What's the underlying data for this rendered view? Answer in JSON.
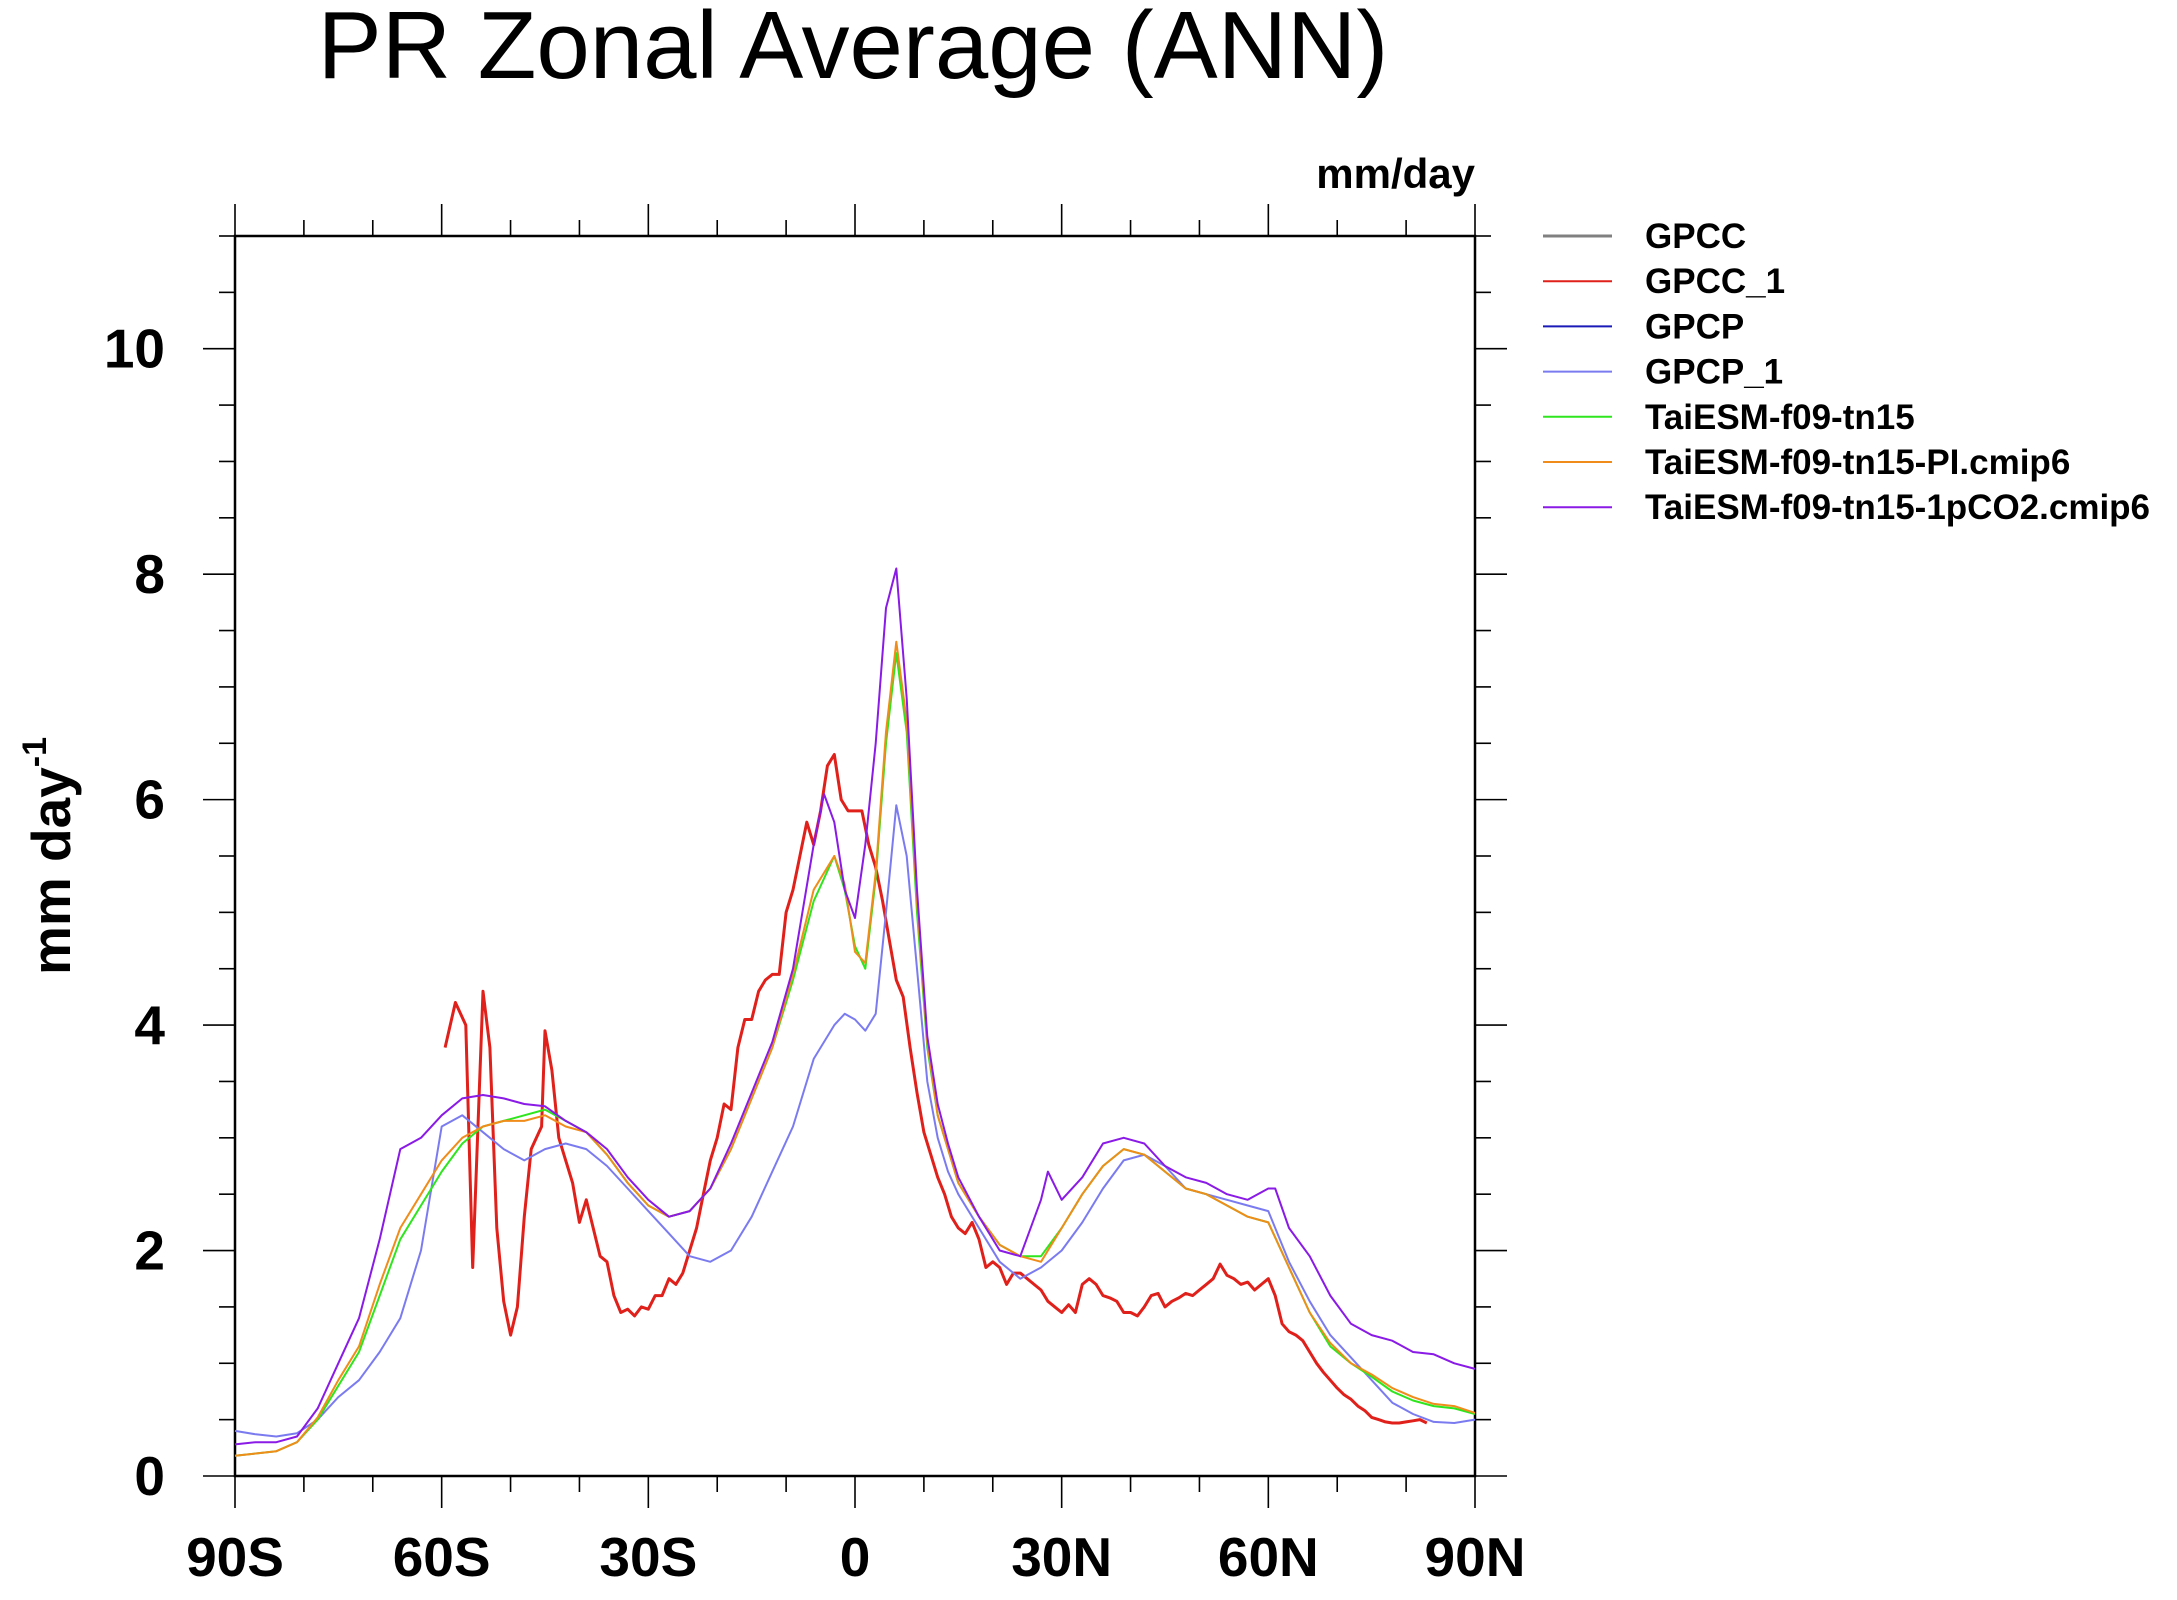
{
  "chart_data": {
    "type": "line",
    "title": "PR Zonal Average (ANN)",
    "units": "mm/day",
    "xlabel": "",
    "ylabel": "mm day",
    "ylabel_sup": "-1",
    "xlim": [
      -90,
      90
    ],
    "ylim": [
      0,
      11
    ],
    "x_ticks": [
      {
        "value": -90,
        "label": "90S"
      },
      {
        "value": -60,
        "label": "60S"
      },
      {
        "value": -30,
        "label": "30S"
      },
      {
        "value": 0,
        "label": "0"
      },
      {
        "value": 30,
        "label": "30N"
      },
      {
        "value": 60,
        "label": "60N"
      },
      {
        "value": 90,
        "label": "90N"
      }
    ],
    "y_ticks": [
      {
        "value": 0,
        "label": "0"
      },
      {
        "value": 2,
        "label": "2"
      },
      {
        "value": 4,
        "label": "4"
      },
      {
        "value": 6,
        "label": "6"
      },
      {
        "value": 8,
        "label": "8"
      },
      {
        "value": 10,
        "label": "10"
      }
    ],
    "legend_position": "right",
    "series": [
      {
        "name": "GPCC",
        "color": "#808080",
        "x": [],
        "y": []
      },
      {
        "name": "GPCC_1",
        "color": "#e0201a",
        "x": [
          -59.5,
          -58,
          -56.5,
          -55.5,
          -54,
          -53,
          -52,
          -51,
          -50,
          -49,
          -48,
          -47,
          -45.5,
          -45,
          -44,
          -43,
          -42,
          -41,
          -40,
          -39,
          -38,
          -37,
          -36,
          -35,
          -34,
          -33,
          -32,
          -31,
          -30,
          -29,
          -28,
          -27,
          -26,
          -25,
          -24,
          -23,
          -22,
          -21,
          -20,
          -19,
          -18,
          -17,
          -16,
          -15,
          -14,
          -13,
          -12,
          -11,
          -10,
          -9,
          -8,
          -7,
          -6,
          -5,
          -4,
          -3,
          -2,
          -1,
          0,
          1,
          2,
          3,
          4,
          5,
          6,
          7,
          8,
          9,
          10,
          11,
          12,
          13,
          14,
          15,
          16,
          17,
          18,
          19,
          20,
          21,
          22,
          23,
          24,
          25,
          26,
          27,
          28,
          29,
          30,
          31,
          32,
          33,
          34,
          35,
          36,
          37,
          38,
          39,
          40,
          41,
          42,
          43,
          44,
          45,
          46,
          47,
          48,
          49,
          50,
          51,
          52,
          53,
          54,
          55,
          56,
          57,
          58,
          59,
          60,
          61,
          62,
          63,
          64,
          65,
          66,
          67,
          68,
          69,
          70,
          71,
          72,
          73,
          74,
          75,
          76,
          77,
          78,
          79,
          80,
          81,
          82,
          83
        ],
        "y": [
          3.8,
          4.2,
          4.0,
          1.85,
          4.3,
          3.8,
          2.2,
          1.55,
          1.25,
          1.5,
          2.3,
          2.9,
          3.1,
          3.95,
          3.6,
          3.0,
          2.8,
          2.6,
          2.25,
          2.45,
          2.2,
          1.95,
          1.9,
          1.6,
          1.45,
          1.48,
          1.42,
          1.5,
          1.48,
          1.6,
          1.6,
          1.75,
          1.7,
          1.8,
          2.0,
          2.2,
          2.5,
          2.8,
          3.0,
          3.3,
          3.25,
          3.8,
          4.05,
          4.05,
          4.3,
          4.4,
          4.45,
          4.45,
          5.0,
          5.2,
          5.5,
          5.8,
          5.6,
          5.9,
          6.3,
          6.4,
          6.0,
          5.9,
          5.9,
          5.9,
          5.6,
          5.4,
          5.1,
          4.75,
          4.4,
          4.25,
          3.8,
          3.4,
          3.05,
          2.85,
          2.65,
          2.5,
          2.3,
          2.2,
          2.15,
          2.25,
          2.1,
          1.85,
          1.9,
          1.85,
          1.7,
          1.8,
          1.8,
          1.75,
          1.7,
          1.65,
          1.55,
          1.5,
          1.45,
          1.52,
          1.45,
          1.7,
          1.75,
          1.7,
          1.6,
          1.58,
          1.55,
          1.45,
          1.45,
          1.42,
          1.5,
          1.6,
          1.62,
          1.5,
          1.55,
          1.58,
          1.62,
          1.6,
          1.65,
          1.7,
          1.75,
          1.88,
          1.78,
          1.75,
          1.7,
          1.72,
          1.65,
          1.7,
          1.75,
          1.6,
          1.35,
          1.28,
          1.25,
          1.2,
          1.1,
          1.0,
          0.92,
          0.85,
          0.78,
          0.72,
          0.68,
          0.62,
          0.58,
          0.52,
          0.5,
          0.48,
          0.47,
          0.47,
          0.48,
          0.49,
          0.5,
          0.47
        ]
      },
      {
        "name": "GPCP",
        "color": "#1a1ab8",
        "x": [],
        "y": []
      },
      {
        "name": "GPCP_1",
        "color": "#7b7bf0",
        "x": [
          -90,
          -87,
          -84,
          -81,
          -78,
          -75,
          -72,
          -69,
          -66,
          -63,
          -60,
          -57,
          -54,
          -51,
          -48,
          -45,
          -42,
          -39,
          -36,
          -33,
          -30,
          -27,
          -24,
          -21,
          -18,
          -15,
          -12,
          -9,
          -6,
          -3,
          -1.5,
          0,
          1.5,
          3,
          4.5,
          6,
          7.5,
          9,
          10.5,
          12,
          13.5,
          15,
          18,
          21,
          24,
          27,
          30,
          33,
          36,
          39,
          42,
          45,
          48,
          51,
          54,
          57,
          60,
          63,
          66,
          69,
          72,
          75,
          78,
          81,
          84,
          87,
          90
        ],
        "y": [
          0.4,
          0.37,
          0.35,
          0.38,
          0.5,
          0.7,
          0.85,
          1.1,
          1.4,
          2.0,
          3.1,
          3.2,
          3.05,
          2.9,
          2.8,
          2.9,
          2.95,
          2.9,
          2.75,
          2.55,
          2.35,
          2.15,
          1.95,
          1.9,
          2.0,
          2.3,
          2.7,
          3.1,
          3.7,
          4.0,
          4.1,
          4.05,
          3.95,
          4.1,
          5.0,
          5.95,
          5.5,
          4.5,
          3.5,
          3.0,
          2.7,
          2.5,
          2.2,
          1.9,
          1.75,
          1.85,
          2.0,
          2.25,
          2.55,
          2.8,
          2.85,
          2.75,
          2.55,
          2.5,
          2.45,
          2.4,
          2.35,
          1.9,
          1.55,
          1.25,
          1.05,
          0.85,
          0.65,
          0.55,
          0.48,
          0.47,
          0.5
        ]
      },
      {
        "name": "TaiESM-f09-tn15",
        "color": "#2ee51e",
        "x": [
          -90,
          -87,
          -84,
          -81,
          -78,
          -75,
          -72,
          -69,
          -66,
          -63,
          -60,
          -57,
          -54,
          -51,
          -48,
          -45,
          -42,
          -39,
          -36,
          -33,
          -30,
          -27,
          -24,
          -21,
          -18,
          -15,
          -12,
          -9,
          -6,
          -3,
          -1.5,
          0,
          1.5,
          3,
          4.5,
          6,
          7.5,
          9,
          10.5,
          12,
          13.5,
          15,
          18,
          21,
          24,
          27,
          30,
          33,
          36,
          39,
          42,
          45,
          48,
          51,
          54,
          57,
          60,
          63,
          66,
          69,
          72,
          75,
          78,
          81,
          84,
          87,
          90
        ],
        "y": [
          0.18,
          0.2,
          0.22,
          0.3,
          0.5,
          0.8,
          1.1,
          1.6,
          2.1,
          2.4,
          2.7,
          2.95,
          3.1,
          3.15,
          3.2,
          3.25,
          3.15,
          3.05,
          2.85,
          2.6,
          2.4,
          2.3,
          2.35,
          2.55,
          2.9,
          3.35,
          3.8,
          4.4,
          5.1,
          5.5,
          5.2,
          4.7,
          4.5,
          5.3,
          6.5,
          7.3,
          6.6,
          5.0,
          3.8,
          3.2,
          2.9,
          2.6,
          2.3,
          2.05,
          1.95,
          1.95,
          2.2,
          2.5,
          2.75,
          2.9,
          2.85,
          2.7,
          2.55,
          2.5,
          2.4,
          2.3,
          2.25,
          1.85,
          1.45,
          1.15,
          1.0,
          0.88,
          0.75,
          0.67,
          0.62,
          0.6,
          0.55
        ]
      },
      {
        "name": "TaiESM-f09-tn15-PI.cmip6",
        "color": "#f08c1a",
        "x": [
          -90,
          -87,
          -84,
          -81,
          -78,
          -75,
          -72,
          -69,
          -66,
          -63,
          -60,
          -57,
          -54,
          -51,
          -48,
          -45,
          -42,
          -39,
          -36,
          -33,
          -30,
          -27,
          -24,
          -21,
          -18,
          -15,
          -12,
          -9,
          -6,
          -3,
          -1.5,
          0,
          1.5,
          3,
          4.5,
          6,
          7.5,
          9,
          10.5,
          12,
          13.5,
          15,
          18,
          21,
          24,
          27,
          30,
          33,
          36,
          39,
          42,
          45,
          48,
          51,
          54,
          57,
          60,
          63,
          66,
          69,
          72,
          75,
          78,
          81,
          84,
          87,
          90
        ],
        "y": [
          0.18,
          0.2,
          0.22,
          0.3,
          0.52,
          0.85,
          1.15,
          1.7,
          2.2,
          2.5,
          2.8,
          3.0,
          3.1,
          3.15,
          3.15,
          3.2,
          3.1,
          3.05,
          2.85,
          2.6,
          2.4,
          2.3,
          2.35,
          2.55,
          2.9,
          3.35,
          3.8,
          4.45,
          5.2,
          5.5,
          5.25,
          4.65,
          4.55,
          5.35,
          6.6,
          7.4,
          6.7,
          5.1,
          3.85,
          3.2,
          2.9,
          2.6,
          2.3,
          2.05,
          1.95,
          1.9,
          2.2,
          2.5,
          2.75,
          2.9,
          2.85,
          2.7,
          2.55,
          2.5,
          2.4,
          2.3,
          2.25,
          1.85,
          1.45,
          1.18,
          1.0,
          0.9,
          0.78,
          0.7,
          0.64,
          0.62,
          0.56
        ]
      },
      {
        "name": "TaiESM-f09-tn15-1pCO2.cmip6",
        "color": "#8a1ae6",
        "x": [
          -90,
          -87,
          -84,
          -81,
          -78,
          -75,
          -72,
          -69,
          -66,
          -63,
          -60,
          -57,
          -54,
          -51,
          -48,
          -45,
          -42,
          -39,
          -36,
          -33,
          -30,
          -27,
          -24,
          -21,
          -18,
          -15,
          -12,
          -9,
          -6,
          -4.5,
          -3,
          -1.5,
          0,
          1.5,
          3,
          4.5,
          6,
          7.5,
          9,
          10.5,
          12,
          13.5,
          15,
          18,
          21,
          24,
          27,
          28,
          30,
          33,
          36,
          39,
          42,
          45,
          48,
          51,
          54,
          57,
          60,
          61,
          63,
          66,
          69,
          72,
          75,
          78,
          81,
          84,
          87,
          90
        ],
        "y": [
          0.28,
          0.3,
          0.3,
          0.35,
          0.6,
          1.0,
          1.4,
          2.1,
          2.9,
          3.0,
          3.2,
          3.35,
          3.38,
          3.35,
          3.3,
          3.28,
          3.15,
          3.05,
          2.9,
          2.65,
          2.45,
          2.3,
          2.35,
          2.55,
          2.95,
          3.4,
          3.85,
          4.5,
          5.6,
          6.05,
          5.8,
          5.2,
          4.95,
          5.6,
          6.5,
          7.7,
          8.05,
          6.9,
          5.2,
          3.9,
          3.3,
          2.95,
          2.65,
          2.3,
          2.0,
          1.95,
          2.45,
          2.7,
          2.45,
          2.65,
          2.95,
          3.0,
          2.95,
          2.75,
          2.65,
          2.6,
          2.5,
          2.45,
          2.55,
          2.55,
          2.2,
          1.95,
          1.6,
          1.35,
          1.25,
          1.2,
          1.1,
          1.08,
          1.0,
          0.95
        ]
      }
    ]
  }
}
